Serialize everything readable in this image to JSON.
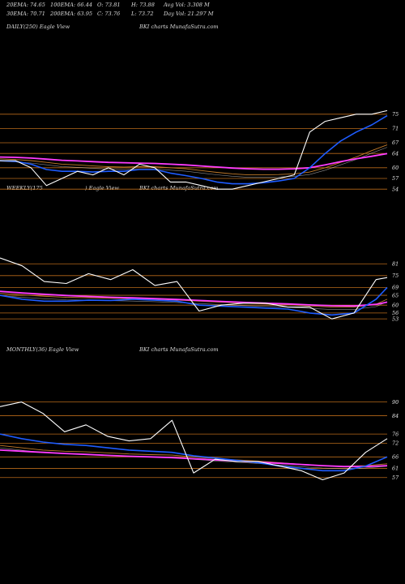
{
  "header": {
    "row1": [
      "20EMA: 74.65",
      "100EMA: 66.44",
      "O: 73.81",
      "H: 73.88",
      "Avg Vol: 3.308  M"
    ],
    "row2": [
      "30EMA: 70.71",
      "200EMA: 63.95",
      "C: 73.76",
      "L: 73.72",
      "Day Vol: 21.297 M"
    ]
  },
  "panels": {
    "daily": {
      "label_left": "DAILY(250) Eagle  View",
      "label_mid": "BKI charts MunafaSutra.com"
    },
    "weekly": {
      "label_left": "WEEKLY(175",
      "label_left2": ") Eagle  View",
      "label_mid": "BKI charts MunafaSutra.com"
    },
    "monthly": {
      "label_left": "MONTHLY(36) Eagle  View",
      "label_mid": "BKI charts MunafaSutra.com"
    }
  },
  "colors": {
    "price": "#ffffff",
    "ema_fast": "#1e5cff",
    "ema_mid": "#ff3cff",
    "ema_slow": "#c07a2a",
    "grid": "#b86a1a"
  },
  "chart_data": [
    {
      "type": "line",
      "title": "DAILY(250) Eagle View",
      "yticks": [
        75,
        71,
        67,
        64,
        60,
        57,
        54
      ],
      "ylim": [
        52,
        77
      ],
      "x": [
        0,
        10,
        20,
        30,
        40,
        50,
        60,
        70,
        80,
        90,
        100,
        110,
        120,
        130,
        140,
        150,
        160,
        170,
        180,
        190,
        200,
        210,
        220,
        230,
        240,
        250
      ],
      "series": [
        {
          "name": "price",
          "values": [
            62,
            62,
            60,
            55,
            57,
            59,
            58,
            60,
            58,
            61,
            60,
            56,
            56,
            55,
            54,
            54,
            55,
            56,
            57,
            58,
            70,
            73,
            74,
            75,
            75,
            76
          ]
        },
        {
          "name": "ema20",
          "values": [
            62,
            61.8,
            61,
            59.5,
            59,
            59,
            58.8,
            59,
            59,
            59.5,
            59.5,
            58.5,
            57.8,
            57,
            56,
            55.5,
            55.5,
            55.8,
            56.3,
            57,
            60,
            64,
            67.5,
            70,
            72,
            74.6
          ]
        },
        {
          "name": "ema100",
          "values": [
            62.5,
            62.3,
            62,
            61.5,
            61,
            60.8,
            60.5,
            60.3,
            60.2,
            60.3,
            60.3,
            60,
            59.7,
            59.2,
            58.7,
            58.3,
            58,
            58,
            58.1,
            58.3,
            58.8,
            60,
            61.5,
            63,
            64.8,
            66.4
          ]
        },
        {
          "name": "ema200",
          "values": [
            63,
            62.9,
            62.7,
            62.4,
            62.1,
            61.9,
            61.7,
            61.5,
            61.4,
            61.3,
            61.2,
            61,
            60.8,
            60.5,
            60.2,
            59.9,
            59.7,
            59.6,
            59.6,
            59.7,
            60,
            60.8,
            61.7,
            62.5,
            63.2,
            63.95
          ]
        }
      ]
    },
    {
      "type": "line",
      "title": "WEEKLY(175 ) Eagle View",
      "yticks": [
        81,
        75,
        69,
        65,
        60,
        56,
        53
      ],
      "ylim": [
        51,
        84
      ],
      "x": [
        0,
        10,
        20,
        30,
        40,
        50,
        60,
        70,
        80,
        90,
        100,
        110,
        120,
        130,
        140,
        150,
        160,
        170,
        175
      ],
      "series": [
        {
          "name": "price",
          "values": [
            84,
            80,
            72,
            71,
            76,
            73,
            78,
            70,
            72,
            57,
            60,
            61,
            61,
            59,
            59,
            53,
            56,
            73,
            74
          ]
        },
        {
          "name": "ema20",
          "values": [
            65,
            63,
            62,
            62,
            62.5,
            62.4,
            63,
            62.5,
            62,
            60,
            59.5,
            59,
            58.5,
            58,
            56,
            55,
            56,
            63,
            69
          ]
        },
        {
          "name": "ema100",
          "values": [
            66,
            65.2,
            64.5,
            64,
            63.8,
            63.5,
            63.3,
            63,
            62.6,
            62,
            61.5,
            61,
            60.6,
            60.2,
            59.6,
            59,
            59,
            60.5,
            63
          ]
        },
        {
          "name": "ema200",
          "values": [
            67,
            66.2,
            65.5,
            64.9,
            64.4,
            64,
            63.7,
            63.3,
            62.9,
            62.4,
            61.9,
            61.4,
            61,
            60.6,
            60.1,
            59.7,
            59.6,
            60.4,
            61.5
          ]
        }
      ]
    },
    {
      "type": "line",
      "title": "MONTHLY(36) Eagle View",
      "yticks": [
        90,
        84,
        76,
        72,
        66,
        61,
        57
      ],
      "ylim": [
        53,
        92
      ],
      "x": [
        0,
        2,
        4,
        6,
        8,
        10,
        12,
        14,
        16,
        18,
        20,
        22,
        24,
        26,
        28,
        30,
        32,
        34,
        36
      ],
      "series": [
        {
          "name": "price",
          "values": [
            88,
            90,
            85,
            77,
            80,
            75,
            73,
            74,
            82,
            59,
            65,
            64,
            64,
            62,
            60,
            56,
            59,
            68,
            74
          ]
        },
        {
          "name": "ema20",
          "values": [
            76,
            74,
            72.5,
            71.5,
            71,
            70,
            69,
            68.5,
            68,
            66.5,
            65.5,
            64.5,
            63.5,
            62,
            61,
            60,
            60,
            62,
            66
          ]
        },
        {
          "name": "ema100",
          "values": [
            71,
            70,
            69,
            68.5,
            68.2,
            67.8,
            67.3,
            67,
            66.8,
            66,
            65.3,
            64.7,
            64.2,
            63.5,
            62.8,
            62.2,
            61.9,
            62.2,
            63
          ]
        },
        {
          "name": "ema200",
          "values": [
            69,
            68.5,
            68,
            67.5,
            67.1,
            66.7,
            66.3,
            66,
            65.7,
            65.2,
            64.7,
            64.2,
            63.7,
            63.2,
            62.7,
            62.2,
            61.8,
            61.8,
            62.2
          ]
        }
      ]
    }
  ]
}
